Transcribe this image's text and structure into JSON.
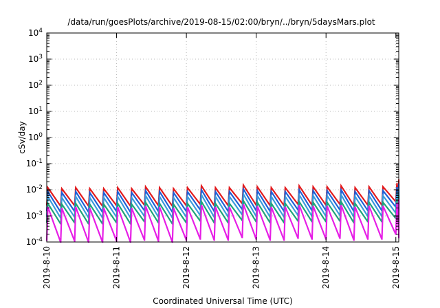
{
  "chart_data": {
    "type": "line",
    "title": "/data/run/goesPlots/archive/2019-08-15/02:00/bryn/../bryn/5daysMars.plot",
    "xlabel": "Coordinated Universal Time (UTC)",
    "ylabel": "cSv/day",
    "y_scale": "log",
    "ylim": [
      0.0001,
      10000
    ],
    "xlim": [
      "2019-08-10",
      "2019-08-15 01:00"
    ],
    "grid": true,
    "x_ticks": [
      "2019-8-10",
      "2019-8-11",
      "2019-8-12",
      "2019-8-13",
      "2019-8-14",
      "2019-8-15"
    ],
    "y_ticks": [
      {
        "value": 0.0001,
        "base": "10",
        "exp": "-4"
      },
      {
        "value": 0.001,
        "base": "10",
        "exp": "-3"
      },
      {
        "value": 0.01,
        "base": "10",
        "exp": "-2"
      },
      {
        "value": 0.1,
        "base": "10",
        "exp": "-1"
      },
      {
        "value": 1,
        "base": "10",
        "exp": "0"
      },
      {
        "value": 10,
        "base": "10",
        "exp": "1"
      },
      {
        "value": 100,
        "base": "10",
        "exp": "2"
      },
      {
        "value": 1000,
        "base": "10",
        "exp": "3"
      },
      {
        "value": 10000,
        "base": "10",
        "exp": "4"
      }
    ],
    "series": [
      {
        "color": "#e31a1c",
        "cycles_per_day": 5,
        "peak_values": [
          0.012,
          0.011,
          0.012,
          0.011,
          0.011,
          0.012,
          0.011,
          0.013,
          0.012,
          0.011,
          0.012,
          0.014,
          0.012,
          0.012,
          0.015,
          0.013,
          0.012,
          0.012,
          0.014,
          0.013,
          0.013,
          0.014,
          0.012,
          0.013,
          0.013,
          0.018,
          0.019,
          0.025,
          0.02,
          0.016,
          0.014,
          0.014,
          0.014,
          0.013,
          0.013,
          0.013,
          0.014,
          0.013,
          0.015,
          0.013,
          0.014,
          0.013,
          0.014,
          0.014,
          0.014,
          0.015,
          0.014,
          0.014,
          0.015,
          0.015,
          0.015,
          0.015,
          0.013,
          0.012,
          0.014
        ],
        "trough_values": [
          0.0025,
          0.0024,
          0.0025,
          0.0024,
          0.0024,
          0.0025,
          0.0024,
          0.0026,
          0.0025,
          0.0024,
          0.0025,
          0.0028,
          0.0025,
          0.0025,
          0.003,
          0.0026,
          0.0025,
          0.0025,
          0.0028,
          0.0026,
          0.0026,
          0.0028,
          0.0025,
          0.0026,
          0.0026,
          0.0035,
          0.0037,
          0.0045,
          0.0039,
          0.0032,
          0.0028,
          0.0028,
          0.0028,
          0.0026,
          0.0026,
          0.0026,
          0.0028,
          0.0026,
          0.003,
          0.0026,
          0.0028,
          0.0026,
          0.0028,
          0.0028,
          0.0028,
          0.003,
          0.0028,
          0.0028,
          0.003,
          0.003,
          0.003,
          0.003,
          0.0026,
          0.0025,
          0.0028
        ]
      },
      {
        "color": "#1f5fd6",
        "cycles_per_day": 5,
        "peak_values": [
          0.0085,
          0.0078,
          0.0085,
          0.0078,
          0.0078,
          0.0085,
          0.0078,
          0.0092,
          0.0085,
          0.0078,
          0.0085,
          0.0099,
          0.0085,
          0.0085,
          0.0106,
          0.0092,
          0.0085,
          0.0085,
          0.0099,
          0.0092,
          0.0092,
          0.0099,
          0.0085,
          0.0092,
          0.0092,
          0.0127,
          0.0134,
          0.0176,
          0.0141,
          0.0113,
          0.0099,
          0.0099,
          0.0099,
          0.0092,
          0.0092,
          0.0092,
          0.0099,
          0.0092,
          0.0106,
          0.0092,
          0.0099,
          0.0092,
          0.0099,
          0.0099,
          0.0099,
          0.0106,
          0.0099,
          0.0099,
          0.0106,
          0.0106,
          0.0106,
          0.0106,
          0.0092,
          0.0085,
          0.0099
        ],
        "trough_values": [
          0.0015,
          0.0014,
          0.0015,
          0.0014,
          0.0014,
          0.0015,
          0.0014,
          0.0016,
          0.0015,
          0.0014,
          0.0015,
          0.0017,
          0.0015,
          0.0015,
          0.0018,
          0.0016,
          0.0015,
          0.0015,
          0.0017,
          0.0016,
          0.0016,
          0.0017,
          0.0015,
          0.0016,
          0.0016,
          0.0022,
          0.0023,
          0.0028,
          0.0024,
          0.002,
          0.0017,
          0.0017,
          0.0017,
          0.0016,
          0.0016,
          0.0016,
          0.0017,
          0.0016,
          0.0018,
          0.0016,
          0.0017,
          0.0016,
          0.0017,
          0.0017,
          0.0017,
          0.0018,
          0.0017,
          0.0017,
          0.0018,
          0.0018,
          0.0018,
          0.0018,
          0.0016,
          0.0015,
          0.0017
        ]
      },
      {
        "color": "#3a9bdc",
        "cycles_per_day": 5,
        "peak_values": [
          0.0055,
          0.005,
          0.0055,
          0.005,
          0.005,
          0.0055,
          0.005,
          0.0059,
          0.0055,
          0.005,
          0.0055,
          0.0064,
          0.0055,
          0.0055,
          0.0068,
          0.0059,
          0.0055,
          0.0055,
          0.0064,
          0.0059,
          0.0059,
          0.0064,
          0.0055,
          0.0059,
          0.0059,
          0.0082,
          0.0087,
          0.0113,
          0.0091,
          0.0073,
          0.0064,
          0.0064,
          0.0064,
          0.0059,
          0.0059,
          0.0059,
          0.0064,
          0.0059,
          0.0068,
          0.0059,
          0.0064,
          0.0059,
          0.0064,
          0.0064,
          0.0064,
          0.0068,
          0.0064,
          0.0064,
          0.0068,
          0.0068,
          0.0068,
          0.0068,
          0.0059,
          0.0055,
          0.0064
        ],
        "trough_values": [
          0.0009,
          0.00085,
          0.0009,
          0.00085,
          0.00085,
          0.0009,
          0.00085,
          0.00097,
          0.0009,
          0.00085,
          0.0009,
          0.00105,
          0.0009,
          0.0009,
          0.00112,
          0.00097,
          0.0009,
          0.0009,
          0.00105,
          0.00097,
          0.00097,
          0.00105,
          0.0009,
          0.00097,
          0.00097,
          0.0013,
          0.0014,
          0.0017,
          0.00145,
          0.0012,
          0.00105,
          0.00105,
          0.00105,
          0.00097,
          0.00097,
          0.00097,
          0.00105,
          0.00097,
          0.00112,
          0.00097,
          0.00105,
          0.00097,
          0.00105,
          0.00105,
          0.00105,
          0.00112,
          0.00105,
          0.00105,
          0.00112,
          0.00112,
          0.00112,
          0.00112,
          0.00097,
          0.0009,
          0.00105
        ]
      },
      {
        "color": "#1fa37a",
        "cycles_per_day": 5,
        "peak_values": [
          0.003,
          0.0028,
          0.003,
          0.0028,
          0.0028,
          0.003,
          0.0028,
          0.0033,
          0.003,
          0.0028,
          0.003,
          0.0035,
          0.003,
          0.003,
          0.0038,
          0.0033,
          0.003,
          0.003,
          0.0035,
          0.0033,
          0.0033,
          0.0035,
          0.003,
          0.0033,
          0.0033,
          0.0045,
          0.0048,
          0.0062,
          0.005,
          0.004,
          0.0035,
          0.0035,
          0.0035,
          0.0033,
          0.0033,
          0.0033,
          0.0035,
          0.0033,
          0.0038,
          0.0033,
          0.0035,
          0.0033,
          0.0035,
          0.0035,
          0.0035,
          0.0038,
          0.0035,
          0.0035,
          0.0038,
          0.0038,
          0.0038,
          0.0038,
          0.0033,
          0.003,
          0.0035
        ],
        "trough_values": [
          0.00055,
          0.0005,
          0.00055,
          0.0005,
          0.0005,
          0.00055,
          0.0005,
          0.0006,
          0.00055,
          0.0005,
          0.00055,
          0.00064,
          0.00055,
          0.00055,
          0.00068,
          0.0006,
          0.00055,
          0.00055,
          0.00064,
          0.0006,
          0.0006,
          0.00064,
          0.00055,
          0.0006,
          0.0006,
          0.0008,
          0.00085,
          0.0011,
          0.0009,
          0.00072,
          0.00064,
          0.00064,
          0.00064,
          0.0006,
          0.0006,
          0.0006,
          0.00064,
          0.0006,
          0.00068,
          0.0006,
          0.00064,
          0.0006,
          0.00064,
          0.00064,
          0.00064,
          0.00068,
          0.00064,
          0.00064,
          0.00068,
          0.00068,
          0.00068,
          0.00068,
          0.0006,
          0.00055,
          0.00064
        ]
      },
      {
        "color": "#e61ee6",
        "cycles_per_day": 5,
        "peak_values": [
          0.0022,
          0.002,
          0.0022,
          0.002,
          0.002,
          0.0022,
          0.002,
          0.0024,
          0.0022,
          0.002,
          0.0022,
          0.0026,
          0.0022,
          0.0022,
          0.0028,
          0.0024,
          0.0022,
          0.0022,
          0.0026,
          0.0024,
          0.0024,
          0.0026,
          0.0022,
          0.0024,
          0.0024,
          0.0032,
          0.0034,
          0.0044,
          0.0036,
          0.0029,
          0.0026,
          0.0026,
          0.0026,
          0.0024,
          0.0024,
          0.0024,
          0.0026,
          0.0024,
          0.0028,
          0.0024,
          0.0026,
          0.0024,
          0.0026,
          0.0026,
          0.0026,
          0.0028,
          0.0026,
          0.0026,
          0.0028,
          0.0028,
          0.0028,
          0.0028,
          0.0024,
          0.0022,
          0.0026
        ],
        "trough_values": [
          0.00011,
          0.0001,
          0.00011,
          0.0001,
          0.0001,
          0.00011,
          0.0001,
          0.00012,
          0.00011,
          0.0001,
          0.00012,
          0.00013,
          0.00012,
          0.00012,
          0.00015,
          0.00013,
          0.00012,
          0.00012,
          0.00014,
          0.00013,
          0.00013,
          0.00014,
          0.00012,
          0.00013,
          0.00013,
          0.0002,
          0.00022,
          0.00028,
          0.00023,
          0.00018,
          0.00016,
          0.00016,
          0.00016,
          0.00015,
          0.00015,
          0.00015,
          0.00016,
          0.00015,
          0.00017,
          0.00015,
          0.00016,
          0.00015,
          0.00016,
          0.00016,
          0.00016,
          0.00017,
          0.00016,
          0.00016,
          0.00017,
          0.00017,
          0.00017,
          0.00017,
          0.00015,
          0.00014,
          0.00016
        ]
      }
    ]
  }
}
